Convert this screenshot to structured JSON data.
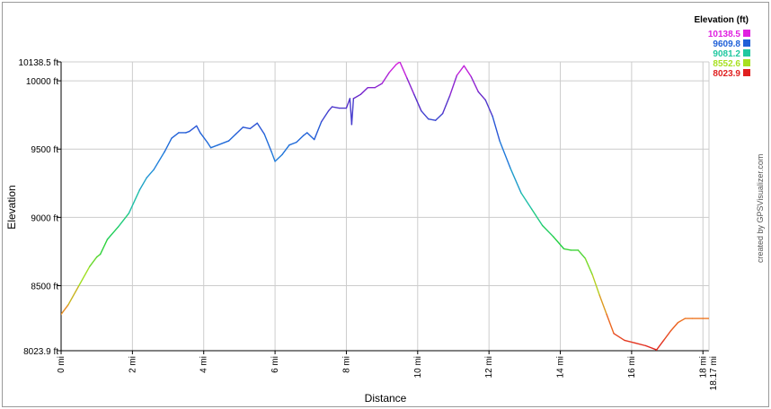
{
  "chart_data": {
    "type": "line",
    "xlabel": "Distance",
    "ylabel": "Elevation",
    "x_unit": "mi",
    "y_unit": "ft",
    "xlim": [
      0,
      18.17
    ],
    "ylim": [
      8023.9,
      10138.5
    ],
    "x_ticks": [
      0,
      2,
      4,
      6,
      8,
      10,
      12,
      14,
      16,
      18
    ],
    "x_tick_labels": [
      "0 mi",
      "2 mi",
      "4 mi",
      "6 mi",
      "8 mi",
      "10 mi",
      "12 mi",
      "14 mi",
      "16 mi",
      "18 mi"
    ],
    "x_end_label": "18.17 mi",
    "y_ticks": [
      8023.9,
      8500,
      9000,
      9500,
      10000,
      10138.5
    ],
    "y_tick_labels": [
      "8023.9 ft",
      "8500 ft",
      "9000 ft",
      "9500 ft",
      "10000 ft",
      "10138.5 ft"
    ],
    "grid": true,
    "legend_position": "top-right",
    "legend": {
      "title": "Elevation (ft)",
      "entries": [
        {
          "label": "10138.5",
          "color": "#e020e0"
        },
        {
          "label": "9609.8",
          "color": "#2060d8"
        },
        {
          "label": "9081.2",
          "color": "#20c8a0"
        },
        {
          "label": "8552.6",
          "color": "#a8e020"
        },
        {
          "label": "8023.9",
          "color": "#e02020"
        }
      ]
    },
    "credit": "created by GPSVisualizer.com",
    "series": [
      {
        "x": [
          0,
          0.2,
          0.5,
          0.8,
          1.0,
          1.1,
          1.3,
          1.6,
          1.9,
          2.2,
          2.4,
          2.6,
          2.9,
          3.1,
          3.3,
          3.5,
          3.6,
          3.8,
          3.9,
          4.1,
          4.2,
          4.4,
          4.7,
          4.9,
          5.1,
          5.3,
          5.5,
          5.7,
          5.9,
          6.0,
          6.2,
          6.4,
          6.6,
          6.8,
          6.9,
          7.1,
          7.3,
          7.5,
          7.6,
          7.8,
          8.0,
          8.1,
          8.15,
          8.2,
          8.4,
          8.6,
          8.8,
          9.0,
          9.2,
          9.4,
          9.5,
          9.7,
          9.9,
          10.1,
          10.3,
          10.5,
          10.7,
          10.9,
          11.1,
          11.3,
          11.5,
          11.7,
          11.9,
          12.1,
          12.3,
          12.6,
          12.9,
          13.2,
          13.5,
          13.8,
          14.1,
          14.3,
          14.5,
          14.7,
          14.9,
          15.1,
          15.3,
          15.5,
          15.8,
          16.1,
          16.4,
          16.7,
          16.9,
          17.1,
          17.3,
          17.5,
          17.7,
          18.0,
          18.17
        ],
        "y": [
          8290,
          8360,
          8500,
          8640,
          8710,
          8730,
          8840,
          8930,
          9030,
          9200,
          9290,
          9350,
          9480,
          9580,
          9620,
          9620,
          9630,
          9670,
          9620,
          9550,
          9510,
          9530,
          9560,
          9610,
          9660,
          9650,
          9690,
          9610,
          9480,
          9410,
          9460,
          9530,
          9550,
          9600,
          9620,
          9570,
          9700,
          9780,
          9810,
          9800,
          9800,
          9870,
          9680,
          9870,
          9900,
          9950,
          9950,
          9980,
          10060,
          10120,
          10138.5,
          10020,
          9900,
          9780,
          9720,
          9710,
          9760,
          9890,
          10040,
          10110,
          10030,
          9920,
          9860,
          9740,
          9560,
          9360,
          9180,
          9060,
          8940,
          8860,
          8770,
          8760,
          8760,
          8700,
          8580,
          8430,
          8290,
          8150,
          8100,
          8080,
          8060,
          8030,
          8100,
          8170,
          8230,
          8260,
          8260,
          8260,
          8260
        ]
      }
    ]
  }
}
